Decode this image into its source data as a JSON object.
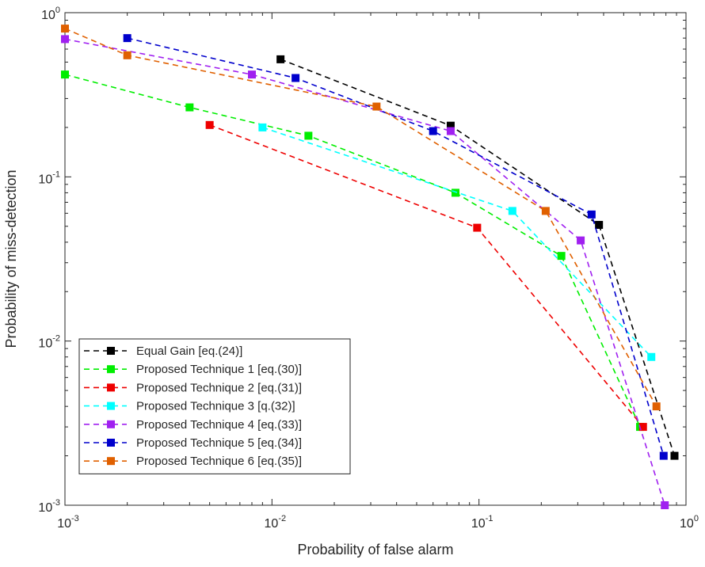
{
  "chart_data": {
    "type": "line",
    "title": "",
    "xlabel": "Probability of false alarm",
    "ylabel": "Probability of miss-detection",
    "xscale": "log",
    "yscale": "log",
    "xlim": [
      0.001,
      1
    ],
    "ylim": [
      0.001,
      1
    ],
    "grid": false,
    "legend_position": "bottom-left",
    "x_tick_labels": [
      {
        "base": "10",
        "exp": "-3"
      },
      {
        "base": "10",
        "exp": "-2"
      },
      {
        "base": "10",
        "exp": "-1"
      },
      {
        "base": "10",
        "exp": "0"
      }
    ],
    "y_tick_labels": [
      {
        "base": "10",
        "exp": "-3"
      },
      {
        "base": "10",
        "exp": "-2"
      },
      {
        "base": "10",
        "exp": "-1"
      },
      {
        "base": "10",
        "exp": "0"
      }
    ],
    "series": [
      {
        "name": "Equal Gain [eq.(24)]",
        "color": "#000000",
        "x": [
          0.011,
          0.073,
          0.38,
          0.88
        ],
        "y": [
          0.52,
          0.205,
          0.051,
          0.002
        ]
      },
      {
        "name": "Proposed Technique 1 [eq.(30)]",
        "color": "#00ee00",
        "x": [
          0.001,
          0.004,
          0.015,
          0.077,
          0.25,
          0.6
        ],
        "y": [
          0.42,
          0.265,
          0.178,
          0.08,
          0.033,
          0.003
        ]
      },
      {
        "name": "Proposed Technique 2 [eq.(31)]",
        "color": "#ee0000",
        "x": [
          0.005,
          0.098,
          0.62
        ],
        "y": [
          0.207,
          0.049,
          0.003
        ]
      },
      {
        "name": "Proposed Technique 3  [q.(32)]",
        "color": "#00ffff",
        "x": [
          0.009,
          0.145,
          0.68
        ],
        "y": [
          0.2,
          0.062,
          0.008
        ]
      },
      {
        "name": "Proposed Technique 4 [eq.(33)]",
        "color": "#a020f0",
        "x": [
          0.001,
          0.008,
          0.073,
          0.31,
          0.79
        ],
        "y": [
          0.69,
          0.42,
          0.19,
          0.041,
          0.001
        ]
      },
      {
        "name": "Proposed Technique 5 [eq.(34)]",
        "color": "#0000cc",
        "x": [
          0.002,
          0.013,
          0.06,
          0.35,
          0.78
        ],
        "y": [
          0.7,
          0.4,
          0.19,
          0.059,
          0.002
        ]
      },
      {
        "name": "Proposed Technique 6 [eq.(35)]",
        "color": "#e06000",
        "x": [
          0.001,
          0.002,
          0.032,
          0.21,
          0.72
        ],
        "y": [
          0.8,
          0.55,
          0.268,
          0.062,
          0.004
        ]
      }
    ]
  }
}
